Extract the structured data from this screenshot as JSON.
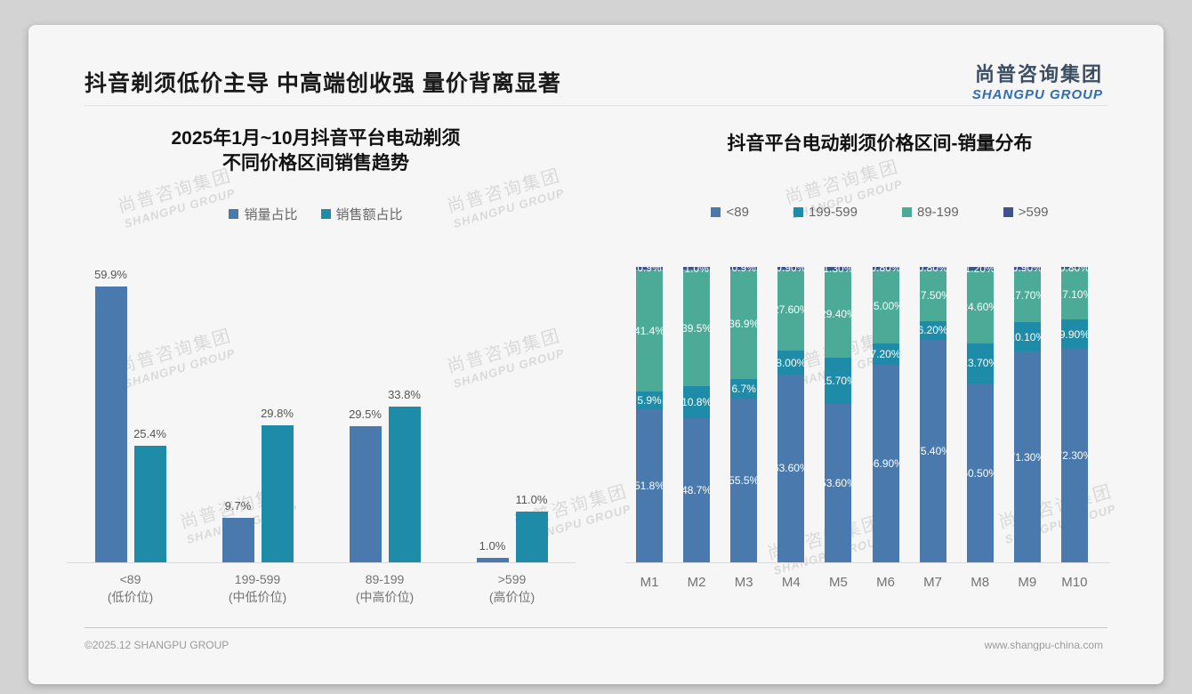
{
  "slide": {
    "title": "抖音剃须低价主导 中高端创收强 量价背离显著"
  },
  "logo": {
    "cn": "尚普咨询集团",
    "en": "SHANGPU GROUP"
  },
  "watermark": {
    "line1": "尚普咨询集团",
    "line2": "SHANGPU GROUP"
  },
  "footer": {
    "left": "©2025.12 SHANGPU GROUP",
    "right": "www.shangpu-china.com"
  },
  "colors": {
    "steel_blue": "#4A79AE",
    "teal": "#1E8CA8",
    "green": "#4BAB96",
    "navy": "#3E5389"
  },
  "chart_data": [
    {
      "type": "bar",
      "title": "2025年1月~10月抖音平台电动剃须\n不同价格区间销售趋势",
      "legend_position": "top",
      "grid": false,
      "ylim": [
        0,
        65
      ],
      "categories": [
        {
          "range": "<89",
          "tier": "(低价位)"
        },
        {
          "range": "199-599",
          "tier": "(中低价位)"
        },
        {
          "range": "89-199",
          "tier": "(中高价位)"
        },
        {
          "range": ">599",
          "tier": "(高价位)"
        }
      ],
      "series": [
        {
          "name": "销量占比",
          "color": "#4A79AE",
          "values": [
            59.9,
            9.7,
            29.5,
            1.0
          ],
          "labels": [
            "59.9%",
            "9.7%",
            "29.5%",
            "1.0%"
          ]
        },
        {
          "name": "销售额占比",
          "color": "#1E8CA8",
          "values": [
            25.4,
            29.8,
            33.8,
            11.0
          ],
          "labels": [
            "25.4%",
            "29.8%",
            "33.8%",
            "11.0%"
          ]
        }
      ]
    },
    {
      "type": "bar",
      "stacked": true,
      "percent_stack": true,
      "title": "抖音平台电动剃须价格区间-销量分布",
      "legend_position": "top",
      "grid": false,
      "ylim": [
        0,
        100
      ],
      "categories": [
        "M1",
        "M2",
        "M3",
        "M4",
        "M5",
        "M6",
        "M7",
        "M8",
        "M9",
        "M10"
      ],
      "series": [
        {
          "name": "<89",
          "color": "#4A79AE",
          "values": [
            51.8,
            48.7,
            55.5,
            63.6,
            53.6,
            66.9,
            75.4,
            60.5,
            71.3,
            72.3
          ],
          "labels": [
            "51.8%",
            "48.7%",
            "55.5%",
            "63.60%",
            "53.60%",
            "66.90%",
            "75.40%",
            "60.50%",
            "71.30%",
            "72.30%"
          ]
        },
        {
          "name": "199-599",
          "color": "#1E8CA8",
          "values": [
            5.9,
            10.8,
            6.7,
            8.0,
            15.7,
            7.2,
            6.2,
            13.7,
            10.1,
            9.9
          ],
          "labels": [
            "5.9%",
            "10.8%",
            "6.7%",
            "8.00%",
            "15.70%",
            "7.20%",
            "6.20%",
            "13.70%",
            "10.10%",
            "9.90%"
          ]
        },
        {
          "name": "89-199",
          "color": "#4BAB96",
          "values": [
            41.4,
            39.5,
            36.9,
            27.6,
            29.4,
            25.0,
            17.5,
            24.6,
            17.7,
            17.1
          ],
          "labels": [
            "41.4%",
            "39.5%",
            "36.9%",
            "27.60%",
            "29.40%",
            "25.00%",
            "17.50%",
            "24.60%",
            "17.70%",
            "17.10%"
          ]
        },
        {
          "name": ">599",
          "color": "#3E5389",
          "values": [
            0.9,
            1.0,
            0.9,
            0.9,
            1.3,
            0.8,
            0.8,
            1.2,
            0.9,
            0.8
          ],
          "labels": [
            "0.9%",
            "1.0%",
            "0.9%",
            "0.90%",
            "1.30%",
            "0.80%",
            "0.80%",
            "1.20%",
            "0.90%",
            "0.80%"
          ]
        }
      ]
    }
  ]
}
